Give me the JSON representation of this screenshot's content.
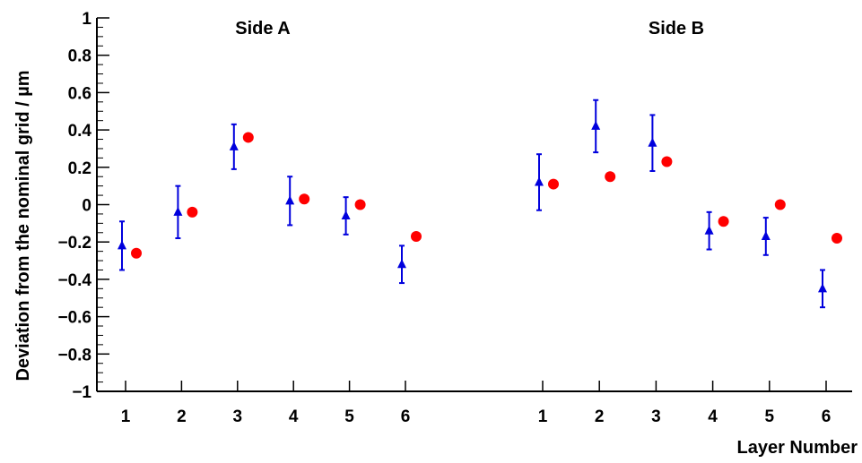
{
  "chart_data": {
    "type": "scatter",
    "ylabel": "Deviation from the nominal grid / µm",
    "xlabel": "Layer Number",
    "ylim": [
      -1,
      1
    ],
    "yticks": [
      -1,
      -0.8,
      -0.6,
      -0.4,
      -0.2,
      0,
      0.2,
      0.4,
      0.6,
      0.8,
      1
    ],
    "ytick_labels": [
      "−1",
      "−0.8",
      "−0.6",
      "−0.4",
      "−0.2",
      "0",
      "0.2",
      "0.4",
      "0.6",
      "0.8",
      "1"
    ],
    "grid": false,
    "colors": {
      "triangle": "#0000dd",
      "circle": "#ff0000",
      "axis": "#000000"
    },
    "panels": [
      {
        "title": "Side A",
        "categories": [
          "1",
          "2",
          "3",
          "4",
          "5",
          "6"
        ],
        "series": [
          {
            "marker": "triangle",
            "values": [
              -0.22,
              -0.04,
              0.31,
              0.02,
              -0.06,
              -0.32
            ],
            "errors": [
              0.13,
              0.14,
              0.12,
              0.13,
              0.1,
              0.1
            ]
          },
          {
            "marker": "circle",
            "values": [
              -0.26,
              -0.04,
              0.36,
              0.03,
              0.0,
              -0.17
            ]
          }
        ]
      },
      {
        "title": "Side B",
        "categories": [
          "1",
          "2",
          "3",
          "4",
          "5",
          "6"
        ],
        "series": [
          {
            "marker": "triangle",
            "values": [
              0.12,
              0.42,
              0.33,
              -0.14,
              -0.17,
              -0.45
            ],
            "errors": [
              0.15,
              0.14,
              0.15,
              0.1,
              0.1,
              0.1
            ]
          },
          {
            "marker": "circle",
            "values": [
              0.11,
              0.15,
              0.23,
              -0.09,
              0.0,
              -0.18
            ]
          }
        ]
      }
    ]
  }
}
